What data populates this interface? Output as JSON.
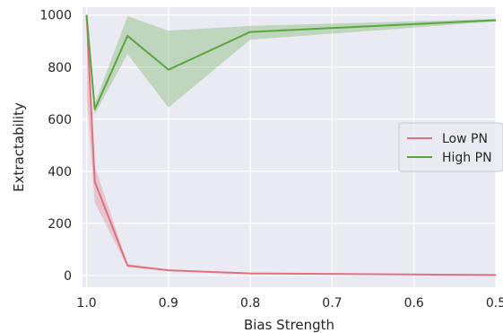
{
  "chart_data": {
    "type": "line",
    "xlabel": "Bias Strength",
    "ylabel": "Extractability",
    "x_reversed": true,
    "xlim": [
      1.005,
      0.5
    ],
    "ylim": [
      -45,
      1030
    ],
    "xticks": [
      1.0,
      0.9,
      0.8,
      0.7,
      0.6,
      0.5
    ],
    "xtick_labels": [
      "1.0",
      "0.9",
      "0.8",
      "0.7",
      "0.6",
      "0.5"
    ],
    "yticks": [
      0,
      200,
      400,
      600,
      800,
      1000
    ],
    "ytick_labels": [
      "0",
      "200",
      "400",
      "600",
      "800",
      "1000"
    ],
    "grid": true,
    "background": "#EAEAF2",
    "legend_position": "right",
    "series": [
      {
        "name": "Low PN",
        "color": "#E0707E",
        "x": [
          1.0,
          0.99,
          0.95,
          0.9,
          0.8,
          0.5
        ],
        "y": [
          1000,
          360,
          38,
          20,
          8,
          2
        ],
        "lower": [
          680,
          280,
          32,
          18,
          6,
          1
        ],
        "upper": [
          1000,
          420,
          44,
          22,
          10,
          3
        ]
      },
      {
        "name": "High PN",
        "color": "#5CA642",
        "x": [
          1.0,
          0.99,
          0.95,
          0.9,
          0.8,
          0.5
        ],
        "y": [
          1000,
          638,
          920,
          790,
          935,
          980
        ],
        "lower": [
          1000,
          620,
          850,
          645,
          905,
          975
        ],
        "upper": [
          1000,
          660,
          995,
          940,
          958,
          985
        ]
      }
    ]
  }
}
